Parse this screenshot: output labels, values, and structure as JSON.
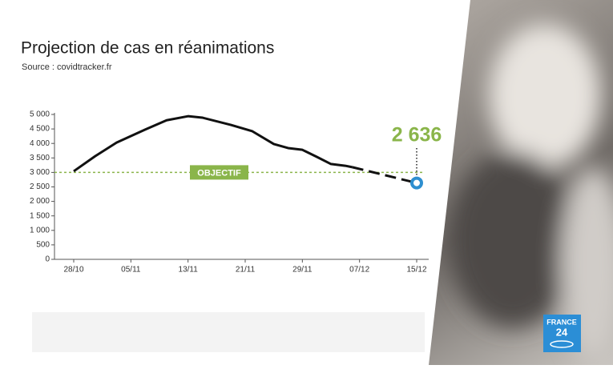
{
  "chart_data": {
    "type": "line",
    "title": "Projection de cas en réanimations",
    "subtitle": "Source : covidtracker.fr",
    "x": [
      "28/10",
      "31/10",
      "03/11",
      "07/11",
      "10/11",
      "13/11",
      "15/11",
      "19/11",
      "22/11",
      "25/11",
      "27/11",
      "29/11",
      "01/12",
      "03/12",
      "05/12",
      "06/12",
      "15/12"
    ],
    "xlim": [
      "28/10",
      "15/12"
    ],
    "xticks": [
      "28/10",
      "05/11",
      "13/11",
      "21/11",
      "29/11",
      "07/12",
      "15/12"
    ],
    "ylim": [
      0,
      5000
    ],
    "yticks": [
      0,
      500,
      {
        "value": 1000,
        "label": "1 000"
      },
      {
        "value": 1500,
        "label": "1 500"
      },
      {
        "value": 2000,
        "label": "2 000"
      },
      {
        "value": 2500,
        "label": "2 500"
      },
      {
        "value": 3000,
        "label": "3 000"
      },
      {
        "value": 3500,
        "label": "3 500"
      },
      {
        "value": 4000,
        "label": "4 000"
      },
      {
        "value": 4500,
        "label": "4 500"
      },
      {
        "value": 5000,
        "label": "5 000"
      }
    ],
    "series": [
      {
        "color": "#111111",
        "style": "solid",
        "values": [
          3040,
          3560,
          4030,
          4480,
          4800,
          4940,
          4890,
          4640,
          4420,
          3980,
          3840,
          3780,
          3540,
          3290,
          3230,
          3180,
          null
        ]
      },
      {
        "color": "#111111",
        "style": "dashed",
        "values": [
          null,
          null,
          null,
          null,
          null,
          null,
          null,
          null,
          null,
          null,
          null,
          null,
          null,
          null,
          null,
          3180,
          2636
        ],
        "value_labels": [
          null,
          null,
          null,
          null,
          null,
          null,
          null,
          null,
          null,
          null,
          null,
          null,
          null,
          null,
          null,
          null,
          "2 636"
        ],
        "label_color": "#8ab54a",
        "marker_color": "#2e8fd0"
      }
    ],
    "target": {
      "label": "OBJECTIF",
      "value": 3000,
      "color": "#8ab54a"
    }
  },
  "logo": {
    "line1": "FRANCE",
    "line2": "24"
  }
}
